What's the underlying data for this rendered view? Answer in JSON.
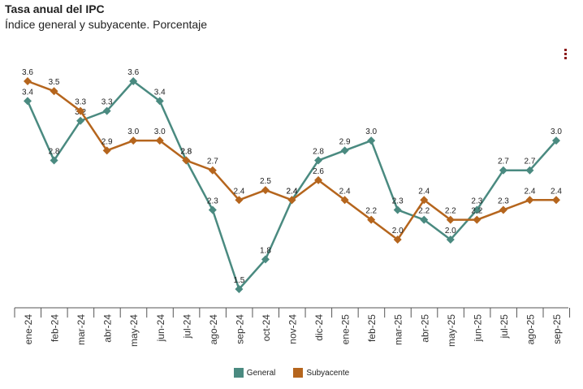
{
  "chart_data": {
    "type": "line",
    "title": "Tasa anual del IPC",
    "subtitle": "Índice general y subyacente. Porcentaje",
    "categories": [
      "ene-24",
      "feb-24",
      "mar-24",
      "abr-24",
      "may-24",
      "jun-24",
      "jul-24",
      "ago-24",
      "sep-24",
      "oct-24",
      "nov-24",
      "dic-24",
      "ene-25",
      "feb-25",
      "mar-25",
      "abr-25",
      "may-25",
      "jun-25",
      "jul-25",
      "ago-25",
      "sep-25"
    ],
    "series": [
      {
        "name": "General",
        "color": "#4a8a80",
        "values": [
          3.4,
          2.8,
          3.2,
          3.3,
          3.6,
          3.4,
          2.8,
          2.3,
          1.5,
          1.8,
          2.4,
          2.8,
          2.9,
          3.0,
          2.3,
          2.2,
          2.0,
          2.3,
          2.7,
          2.7,
          3.0
        ]
      },
      {
        "name": "Subyacente",
        "color": "#b5651d",
        "values": [
          3.6,
          3.5,
          3.3,
          2.9,
          3.0,
          3.0,
          2.8,
          2.7,
          2.4,
          2.5,
          2.4,
          2.6,
          2.4,
          2.2,
          2.0,
          2.4,
          2.2,
          2.2,
          2.3,
          2.4,
          2.4
        ]
      }
    ],
    "ylim": [
      1.5,
      3.6
    ],
    "xlabel": "",
    "ylabel": "",
    "grid": false,
    "legend_position": "bottom"
  }
}
